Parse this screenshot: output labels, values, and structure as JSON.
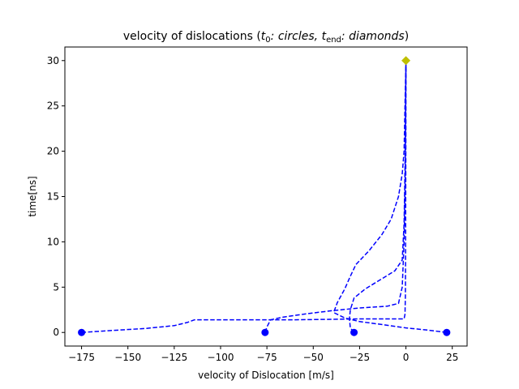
{
  "chart_data": {
    "type": "line",
    "title": {
      "prefix": "velocity of dislocations (",
      "t0_var": "t",
      "t0_sub": "0",
      "t0_text": ": circles, ",
      "tend_var": "t",
      "tend_sub": "end",
      "tend_text": ": diamonds",
      "suffix": ")"
    },
    "xlabel": "velocity of Dislocation [m/s]",
    "ylabel": "time[ns]",
    "xlim": [
      -184,
      33
    ],
    "ylim": [
      -1.5,
      31.5
    ],
    "xticks": [
      -175,
      -150,
      -125,
      -100,
      -75,
      -50,
      -25,
      0,
      25
    ],
    "xtick_labels": [
      "−175",
      "−150",
      "−125",
      "−100",
      "−75",
      "−50",
      "−25",
      "0",
      "25"
    ],
    "yticks": [
      0,
      5,
      10,
      15,
      20,
      25,
      30
    ],
    "ytick_labels": [
      "0",
      "5",
      "10",
      "15",
      "20",
      "25",
      "30"
    ],
    "grid": false,
    "colors": {
      "series": "#0000ff",
      "end_marker": "#bfbf00"
    },
    "start_markers": [
      {
        "x": -175,
        "y": 0
      },
      {
        "x": -76,
        "y": 0
      },
      {
        "x": -28,
        "y": 0
      },
      {
        "x": 22,
        "y": 0
      }
    ],
    "end_markers": [
      {
        "x": 0,
        "y": 30
      }
    ],
    "series": [
      {
        "values": [
          [
            -175,
            0
          ],
          [
            -160,
            0.2
          ],
          [
            -140,
            0.45
          ],
          [
            -125,
            0.75
          ],
          [
            -118,
            1.1
          ],
          [
            -114,
            1.4
          ],
          [
            -100,
            1.4
          ],
          [
            -80,
            1.4
          ],
          [
            -60,
            1.4
          ],
          [
            -40,
            1.45
          ],
          [
            -25,
            1.5
          ],
          [
            -10,
            1.5
          ],
          [
            -1,
            1.5
          ],
          [
            -0.5,
            2
          ],
          [
            -0.3,
            4
          ],
          [
            -0.2,
            8
          ],
          [
            -0.1,
            15
          ],
          [
            -0.05,
            22
          ],
          [
            0,
            30
          ]
        ]
      },
      {
        "values": [
          [
            -76,
            0
          ],
          [
            -75,
            0.6
          ],
          [
            -73,
            1.4
          ],
          [
            -66,
            1.7
          ],
          [
            -52,
            2.1
          ],
          [
            -40,
            2.4
          ],
          [
            -25,
            2.7
          ],
          [
            -10,
            2.9
          ],
          [
            -4,
            3.2
          ],
          [
            -2,
            5
          ],
          [
            -1,
            10
          ],
          [
            -0.5,
            15
          ],
          [
            -0.2,
            20
          ],
          [
            -0.1,
            25
          ],
          [
            0,
            30
          ]
        ]
      },
      {
        "values": [
          [
            -28,
            0
          ],
          [
            -30,
            0.5
          ],
          [
            -30.5,
            1.5
          ],
          [
            -30,
            2.5
          ],
          [
            -28,
            3.8
          ],
          [
            -22,
            4.8
          ],
          [
            -14,
            5.8
          ],
          [
            -6,
            6.8
          ],
          [
            -2,
            8
          ],
          [
            -1,
            12
          ],
          [
            -0.5,
            18
          ],
          [
            -0.2,
            25
          ],
          [
            0,
            30
          ]
        ]
      },
      {
        "values": [
          [
            22,
            0
          ],
          [
            12,
            0.25
          ],
          [
            0,
            0.5
          ],
          [
            -12,
            0.85
          ],
          [
            -25,
            1.2
          ],
          [
            -33,
            1.6
          ],
          [
            -39,
            2.2
          ],
          [
            -37,
            3.3
          ],
          [
            -33,
            4.8
          ],
          [
            -30,
            6.2
          ],
          [
            -27,
            7.5
          ],
          [
            -20,
            9
          ],
          [
            -13,
            10.8
          ],
          [
            -8,
            12.5
          ],
          [
            -4,
            15
          ],
          [
            -2,
            17.5
          ],
          [
            -1,
            20
          ],
          [
            -0.5,
            25
          ],
          [
            0,
            30
          ]
        ]
      }
    ]
  }
}
